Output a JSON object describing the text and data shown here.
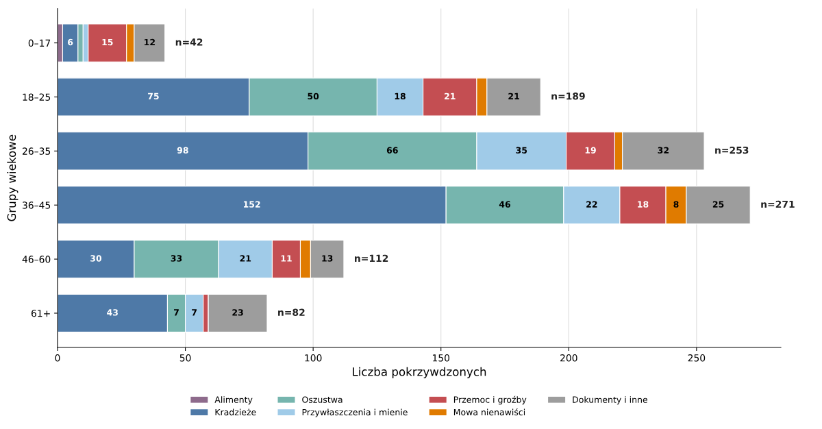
{
  "chart_data": {
    "type": "bar",
    "orientation": "horizontal",
    "stacked": true,
    "xlabel": "Liczba pokrzywdzonych",
    "ylabel": "Grupy wiekowe",
    "categories": [
      "0–17",
      "18–25",
      "26–35",
      "36–45",
      "46–60",
      "61+"
    ],
    "series": [
      {
        "name": "Alimenty",
        "color": "#8e6b8c",
        "values": [
          2,
          0,
          0,
          0,
          0,
          0
        ],
        "value_labels": [
          null,
          null,
          null,
          null,
          null,
          null
        ]
      },
      {
        "name": "Kradzieże",
        "color": "#4e79a7",
        "values": [
          6,
          75,
          98,
          152,
          30,
          43
        ],
        "value_labels": [
          "6",
          "75",
          "98",
          "152",
          "30",
          "43"
        ]
      },
      {
        "name": "Oszustwa",
        "color": "#76b5ae",
        "values": [
          2,
          50,
          66,
          46,
          33,
          7
        ],
        "value_labels": [
          null,
          "50",
          "66",
          "46",
          "33",
          "7"
        ]
      },
      {
        "name": "Przywłaszczenia i mienie",
        "color": "#a0cbe8",
        "values": [
          2,
          18,
          35,
          22,
          21,
          7
        ],
        "value_labels": [
          null,
          "18",
          "35",
          "22",
          "21",
          "7"
        ]
      },
      {
        "name": "Przemoc i groźby",
        "color": "#c44e52",
        "values": [
          15,
          21,
          19,
          18,
          11,
          2
        ],
        "value_labels": [
          "15",
          "21",
          "19",
          "18",
          "11",
          null
        ]
      },
      {
        "name": "Mowa nienawiści",
        "color": "#e07b00",
        "values": [
          3,
          4,
          3,
          8,
          4,
          0
        ],
        "value_labels": [
          null,
          null,
          null,
          "8",
          null,
          null
        ]
      },
      {
        "name": "Dokumenty i inne",
        "color": "#9d9d9d",
        "values": [
          12,
          21,
          32,
          25,
          13,
          23
        ],
        "value_labels": [
          "12",
          "21",
          "32",
          "25",
          "13",
          "23"
        ]
      }
    ],
    "totals": [
      "n=42",
      "n=189",
      "n=253",
      "n=271",
      "n=112",
      "n=82"
    ],
    "xlim": [
      0,
      283
    ],
    "xticks": [
      0,
      50,
      100,
      150,
      200,
      250
    ],
    "grid": "x",
    "legend": "bottom"
  }
}
